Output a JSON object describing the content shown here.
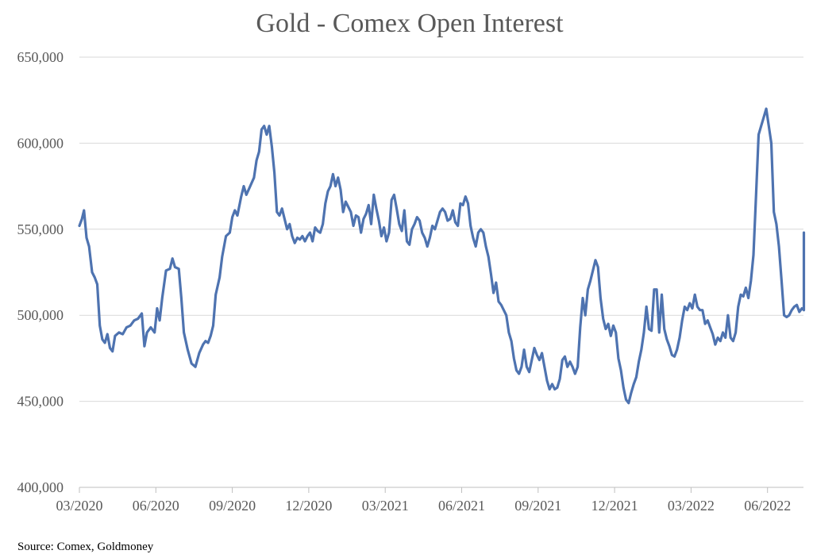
{
  "chart_data": {
    "type": "line",
    "title": "Gold - Comex Open Interest",
    "source": "Source: Comex, Goldmoney",
    "ylim": [
      400000,
      650000
    ],
    "y_ticks": [
      {
        "value": 650000,
        "label": "650,000"
      },
      {
        "value": 600000,
        "label": "600,000"
      },
      {
        "value": 550000,
        "label": "550,000"
      },
      {
        "value": 500000,
        "label": "500,000"
      },
      {
        "value": 450000,
        "label": "450,000"
      },
      {
        "value": 400000,
        "label": "400,000"
      }
    ],
    "x_ticks": [
      "03/2020",
      "06/2020",
      "09/2020",
      "12/2020",
      "03/2021",
      "06/2021",
      "09/2021",
      "12/2021",
      "03/2022",
      "06/2022"
    ],
    "x_unit": "months since 03/2020",
    "xlim": [
      0,
      29.6
    ],
    "grid": true,
    "line_color": "#4e73b0",
    "series": [
      {
        "values": [
          [
            0.0,
            552000
          ],
          [
            0.1,
            556000
          ],
          [
            0.18,
            561000
          ],
          [
            0.28,
            545000
          ],
          [
            0.38,
            540000
          ],
          [
            0.5,
            525000
          ],
          [
            0.6,
            522000
          ],
          [
            0.7,
            518000
          ],
          [
            0.8,
            494000
          ],
          [
            0.9,
            486000
          ],
          [
            1.0,
            484000
          ],
          [
            1.1,
            489000
          ],
          [
            1.2,
            481000
          ],
          [
            1.3,
            479000
          ],
          [
            1.4,
            488000
          ],
          [
            1.55,
            490000
          ],
          [
            1.7,
            489000
          ],
          [
            1.85,
            493000
          ],
          [
            2.0,
            494000
          ],
          [
            2.15,
            497000
          ],
          [
            2.3,
            498000
          ],
          [
            2.45,
            501000
          ],
          [
            2.55,
            482000
          ],
          [
            2.65,
            490000
          ],
          [
            2.8,
            493000
          ],
          [
            2.95,
            490000
          ],
          [
            3.05,
            504000
          ],
          [
            3.15,
            497000
          ],
          [
            3.25,
            510000
          ],
          [
            3.4,
            526000
          ],
          [
            3.55,
            527000
          ],
          [
            3.65,
            533000
          ],
          [
            3.75,
            528000
          ],
          [
            3.9,
            527000
          ],
          [
            4.0,
            510000
          ],
          [
            4.1,
            490000
          ],
          [
            4.25,
            480000
          ],
          [
            4.4,
            472000
          ],
          [
            4.55,
            470000
          ],
          [
            4.7,
            478000
          ],
          [
            4.85,
            483000
          ],
          [
            4.95,
            485000
          ],
          [
            5.05,
            484000
          ],
          [
            5.15,
            488000
          ],
          [
            5.25,
            494000
          ],
          [
            5.35,
            512000
          ],
          [
            5.5,
            522000
          ],
          [
            5.6,
            534000
          ],
          [
            5.75,
            546000
          ],
          [
            5.9,
            548000
          ],
          [
            6.0,
            557000
          ],
          [
            6.1,
            561000
          ],
          [
            6.2,
            558000
          ],
          [
            6.35,
            569000
          ],
          [
            6.45,
            575000
          ],
          [
            6.55,
            570000
          ],
          [
            6.7,
            575000
          ],
          [
            6.85,
            580000
          ],
          [
            6.95,
            590000
          ],
          [
            7.05,
            595000
          ],
          [
            7.15,
            608000
          ],
          [
            7.25,
            610000
          ],
          [
            7.35,
            605000
          ],
          [
            7.45,
            610000
          ],
          [
            7.55,
            598000
          ],
          [
            7.65,
            583000
          ],
          [
            7.75,
            560000
          ],
          [
            7.85,
            558000
          ],
          [
            7.95,
            562000
          ],
          [
            8.05,
            556000
          ],
          [
            8.15,
            550000
          ],
          [
            8.25,
            553000
          ],
          [
            8.35,
            546000
          ],
          [
            8.45,
            542000
          ],
          [
            8.55,
            545000
          ],
          [
            8.65,
            544000
          ],
          [
            8.75,
            546000
          ],
          [
            8.85,
            543000
          ],
          [
            8.95,
            546000
          ],
          [
            9.05,
            548000
          ],
          [
            9.15,
            543000
          ],
          [
            9.25,
            551000
          ],
          [
            9.35,
            549000
          ],
          [
            9.45,
            548000
          ],
          [
            9.55,
            553000
          ],
          [
            9.65,
            565000
          ],
          [
            9.75,
            572000
          ],
          [
            9.85,
            575000
          ],
          [
            9.95,
            582000
          ],
          [
            10.05,
            575000
          ],
          [
            10.15,
            580000
          ],
          [
            10.25,
            573000
          ],
          [
            10.35,
            560000
          ],
          [
            10.45,
            566000
          ],
          [
            10.55,
            563000
          ],
          [
            10.65,
            560000
          ],
          [
            10.75,
            552000
          ],
          [
            10.85,
            558000
          ],
          [
            10.95,
            557000
          ],
          [
            11.05,
            548000
          ],
          [
            11.15,
            556000
          ],
          [
            11.25,
            559000
          ],
          [
            11.35,
            564000
          ],
          [
            11.45,
            553000
          ],
          [
            11.55,
            570000
          ],
          [
            11.65,
            562000
          ],
          [
            11.75,
            555000
          ],
          [
            11.85,
            546000
          ],
          [
            11.95,
            551000
          ],
          [
            12.05,
            543000
          ],
          [
            12.15,
            548000
          ],
          [
            12.25,
            567000
          ],
          [
            12.35,
            570000
          ],
          [
            12.45,
            562000
          ],
          [
            12.55,
            553000
          ],
          [
            12.65,
            549000
          ],
          [
            12.75,
            561000
          ],
          [
            12.85,
            543000
          ],
          [
            12.95,
            541000
          ],
          [
            13.05,
            550000
          ],
          [
            13.15,
            553000
          ],
          [
            13.25,
            557000
          ],
          [
            13.35,
            555000
          ],
          [
            13.45,
            548000
          ],
          [
            13.55,
            545000
          ],
          [
            13.65,
            540000
          ],
          [
            13.75,
            545000
          ],
          [
            13.85,
            552000
          ],
          [
            13.95,
            550000
          ],
          [
            14.05,
            555000
          ],
          [
            14.15,
            560000
          ],
          [
            14.25,
            562000
          ],
          [
            14.35,
            560000
          ],
          [
            14.45,
            555000
          ],
          [
            14.55,
            556000
          ],
          [
            14.65,
            561000
          ],
          [
            14.75,
            554000
          ],
          [
            14.85,
            552000
          ],
          [
            14.95,
            565000
          ],
          [
            15.05,
            564000
          ],
          [
            15.15,
            569000
          ],
          [
            15.25,
            565000
          ],
          [
            15.35,
            552000
          ],
          [
            15.45,
            545000
          ],
          [
            15.55,
            540000
          ],
          [
            15.65,
            548000
          ],
          [
            15.75,
            550000
          ],
          [
            15.85,
            548000
          ],
          [
            15.95,
            540000
          ],
          [
            16.05,
            534000
          ],
          [
            16.15,
            524000
          ],
          [
            16.25,
            513000
          ],
          [
            16.35,
            519000
          ],
          [
            16.45,
            508000
          ],
          [
            16.55,
            506000
          ],
          [
            16.65,
            503000
          ],
          [
            16.75,
            500000
          ],
          [
            16.85,
            490000
          ],
          [
            16.95,
            485000
          ],
          [
            17.05,
            475000
          ],
          [
            17.15,
            468000
          ],
          [
            17.25,
            466000
          ],
          [
            17.35,
            470000
          ],
          [
            17.45,
            480000
          ],
          [
            17.55,
            470000
          ],
          [
            17.65,
            467000
          ],
          [
            17.75,
            474000
          ],
          [
            17.85,
            481000
          ],
          [
            17.95,
            477000
          ],
          [
            18.05,
            474000
          ],
          [
            18.15,
            478000
          ],
          [
            18.25,
            470000
          ],
          [
            18.35,
            462000
          ],
          [
            18.45,
            457000
          ],
          [
            18.55,
            460000
          ],
          [
            18.65,
            457000
          ],
          [
            18.75,
            458000
          ],
          [
            18.85,
            463000
          ],
          [
            18.95,
            474000
          ],
          [
            19.05,
            476000
          ],
          [
            19.15,
            470000
          ],
          [
            19.25,
            473000
          ],
          [
            19.35,
            470000
          ],
          [
            19.45,
            466000
          ],
          [
            19.55,
            470000
          ],
          [
            19.65,
            493000
          ],
          [
            19.75,
            510000
          ],
          [
            19.85,
            500000
          ],
          [
            19.95,
            515000
          ],
          [
            20.05,
            520000
          ],
          [
            20.15,
            526000
          ],
          [
            20.25,
            532000
          ],
          [
            20.35,
            528000
          ],
          [
            20.45,
            510000
          ],
          [
            20.55,
            498000
          ],
          [
            20.65,
            492000
          ],
          [
            20.75,
            495000
          ],
          [
            20.85,
            488000
          ],
          [
            20.95,
            494000
          ],
          [
            21.05,
            490000
          ],
          [
            21.15,
            475000
          ],
          [
            21.25,
            468000
          ],
          [
            21.35,
            458000
          ],
          [
            21.45,
            451000
          ],
          [
            21.55,
            449000
          ],
          [
            21.65,
            455000
          ],
          [
            21.75,
            460000
          ],
          [
            21.85,
            464000
          ],
          [
            21.95,
            473000
          ],
          [
            22.05,
            480000
          ],
          [
            22.15,
            490000
          ],
          [
            22.25,
            505000
          ],
          [
            22.35,
            492000
          ],
          [
            22.45,
            491000
          ],
          [
            22.55,
            515000
          ],
          [
            22.65,
            515000
          ],
          [
            22.75,
            490000
          ],
          [
            22.85,
            512000
          ],
          [
            22.95,
            492000
          ],
          [
            23.05,
            486000
          ],
          [
            23.15,
            482000
          ],
          [
            23.25,
            477000
          ],
          [
            23.35,
            476000
          ],
          [
            23.45,
            480000
          ],
          [
            23.55,
            487000
          ],
          [
            23.65,
            497000
          ],
          [
            23.75,
            505000
          ],
          [
            23.85,
            503000
          ],
          [
            23.95,
            507000
          ],
          [
            24.05,
            504000
          ],
          [
            24.15,
            512000
          ],
          [
            24.25,
            505000
          ],
          [
            24.35,
            503000
          ],
          [
            24.45,
            503000
          ],
          [
            24.55,
            495000
          ],
          [
            24.65,
            497000
          ],
          [
            24.75,
            493000
          ],
          [
            24.85,
            489000
          ],
          [
            24.95,
            483000
          ],
          [
            25.05,
            487000
          ],
          [
            25.15,
            485000
          ],
          [
            25.25,
            490000
          ],
          [
            25.35,
            487000
          ],
          [
            25.45,
            500000
          ],
          [
            25.55,
            487000
          ],
          [
            25.65,
            485000
          ],
          [
            25.75,
            490000
          ],
          [
            25.85,
            505000
          ],
          [
            25.95,
            512000
          ],
          [
            26.05,
            511000
          ],
          [
            26.15,
            516000
          ],
          [
            26.25,
            510000
          ],
          [
            26.35,
            520000
          ],
          [
            26.45,
            535000
          ],
          [
            26.55,
            570000
          ],
          [
            26.65,
            605000
          ],
          [
            26.75,
            610000
          ],
          [
            26.85,
            615000
          ],
          [
            26.95,
            620000
          ],
          [
            27.05,
            610000
          ],
          [
            27.15,
            600000
          ],
          [
            27.25,
            560000
          ],
          [
            27.35,
            553000
          ],
          [
            27.45,
            540000
          ],
          [
            27.55,
            520000
          ],
          [
            27.65,
            500000
          ],
          [
            27.75,
            499000
          ],
          [
            27.85,
            500000
          ],
          [
            27.95,
            503000
          ],
          [
            28.05,
            505000
          ],
          [
            28.15,
            506000
          ],
          [
            28.25,
            502000
          ],
          [
            28.35,
            504000
          ],
          [
            28.45,
            503000
          ],
          [
            28.55,
            505000
          ],
          [
            28.65,
            508000
          ],
          [
            28.75,
            512000
          ],
          [
            28.85,
            510000
          ],
          [
            28.95,
            520000
          ],
          [
            29.05,
            535000
          ],
          [
            29.15,
            548000
          ]
        ]
      }
    ]
  }
}
